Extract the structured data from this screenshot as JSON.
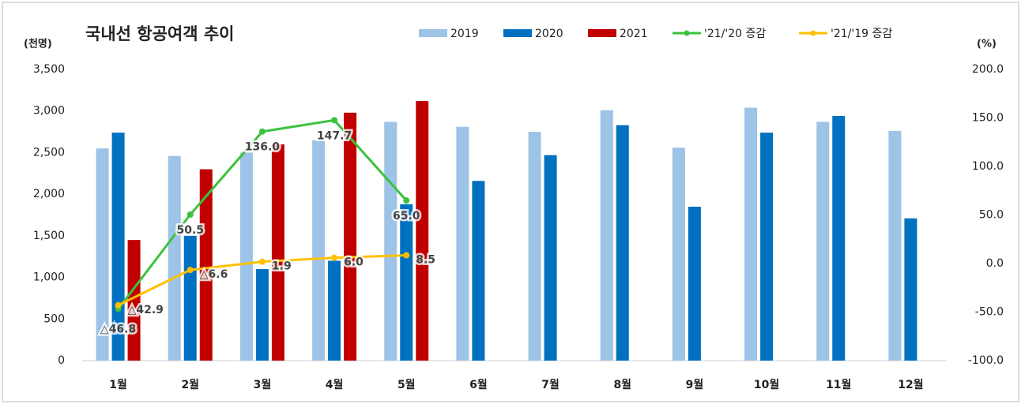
{
  "chart_data": {
    "type": "bar",
    "title": "국내선 항공여객 추이",
    "ylabel": "(천명)",
    "y2label": "(%)",
    "categories": [
      "1월",
      "2월",
      "3월",
      "4월",
      "5월",
      "6월",
      "7월",
      "8월",
      "9월",
      "10월",
      "11월",
      "12월"
    ],
    "ylim": [
      0,
      3500
    ],
    "yticks": [
      0,
      500,
      {
        "value": 1000,
        "label": "1,000"
      },
      {
        "value": 1500,
        "label": "1,500"
      },
      {
        "value": 2000,
        "label": "2,000"
      },
      {
        "value": 2500,
        "label": "2,500"
      },
      {
        "value": 3000,
        "label": "3,000"
      },
      {
        "value": 3500,
        "label": "3,500"
      }
    ],
    "y2lim": [
      -100,
      200
    ],
    "y2ticks": [
      {
        "value": -100,
        "label": "-100.0"
      },
      {
        "value": -50,
        "label": "-50.0"
      },
      {
        "value": 0,
        "label": "0.0"
      },
      {
        "value": 50,
        "label": "50.0"
      },
      {
        "value": 100,
        "label": "100.0"
      },
      {
        "value": 150,
        "label": "150.0"
      },
      {
        "value": 200,
        "label": "200.0"
      }
    ],
    "series": [
      {
        "name": "2019",
        "type": "bar",
        "color": "#9dc3e6",
        "values": [
          2550,
          2460,
          2500,
          2650,
          2870,
          2810,
          2750,
          3010,
          2560,
          3040,
          2870,
          2760
        ]
      },
      {
        "name": "2020",
        "type": "bar",
        "color": "#0070c0",
        "values": [
          2740,
          1500,
          1100,
          1200,
          1880,
          2160,
          2470,
          2830,
          1850,
          2740,
          2940,
          1710
        ]
      },
      {
        "name": "2021",
        "type": "bar",
        "color": "#c00000",
        "values": [
          1450,
          2300,
          2600,
          2980,
          3120,
          null,
          null,
          null,
          null,
          null,
          null,
          null
        ]
      },
      {
        "name": "'21/'20 증감",
        "type": "line",
        "axis": "y2",
        "color": "#3cc13c",
        "values": [
          -46.8,
          50.5,
          136.0,
          147.7,
          65.0,
          null,
          null,
          null,
          null,
          null,
          null,
          null
        ],
        "value_labels": [
          "△46.8",
          "50.5",
          "136.0",
          "147.7",
          "65.0",
          null,
          null,
          null,
          null,
          null,
          null,
          null
        ]
      },
      {
        "name": "'21/'19 증감",
        "type": "line",
        "axis": "y2",
        "color": "#ffc000",
        "values": [
          -42.9,
          -6.6,
          1.9,
          6.0,
          8.5,
          null,
          null,
          null,
          null,
          null,
          null,
          null
        ],
        "value_labels": [
          "△42.9",
          "△6.6",
          "1.9",
          "6.0",
          "8.5",
          null,
          null,
          null,
          null,
          null,
          null,
          null
        ]
      }
    ]
  }
}
